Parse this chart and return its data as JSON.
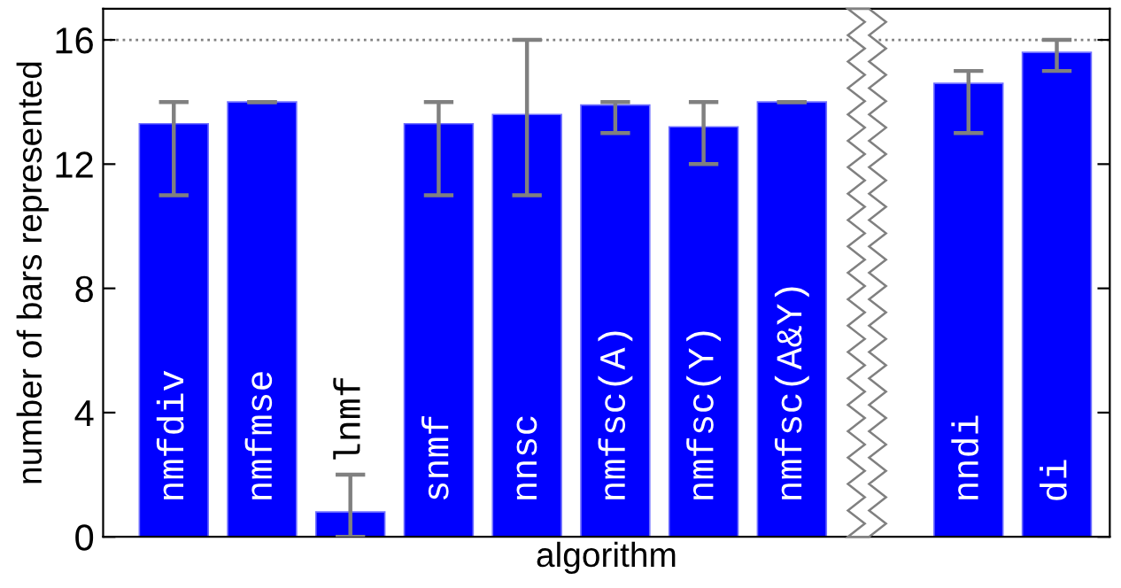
{
  "chart_data": {
    "type": "bar",
    "xlabel": "algorithm",
    "ylabel": "number of bars represented",
    "categories": [
      "nmfdiv",
      "nmfmse",
      "lnmf",
      "snmf",
      "nnsc",
      "nmfsc(A)",
      "nmfsc(Y)",
      "nmfsc(A&Y)",
      null,
      "nndi",
      "di"
    ],
    "values": [
      13.3,
      14,
      0.8,
      13.3,
      13.6,
      13.9,
      13.2,
      14,
      null,
      14.6,
      15.6
    ],
    "errors": [
      [
        11,
        14
      ],
      [
        14,
        14
      ],
      [
        0,
        2
      ],
      [
        11,
        14
      ],
      [
        11,
        16
      ],
      [
        13,
        14
      ],
      [
        12,
        14
      ],
      [
        14,
        14
      ],
      null,
      [
        13,
        15
      ],
      [
        15,
        16
      ]
    ],
    "color": "#0000ff",
    "ylim": [
      0,
      17
    ],
    "yticks": [
      0,
      4,
      8,
      12,
      16
    ],
    "ref_lines": [
      {
        "axis": "y",
        "value": 16,
        "color": "#808080",
        "line_style": "dotted"
      }
    ],
    "grid": false,
    "legend": false,
    "tick_labels": "y"
  }
}
